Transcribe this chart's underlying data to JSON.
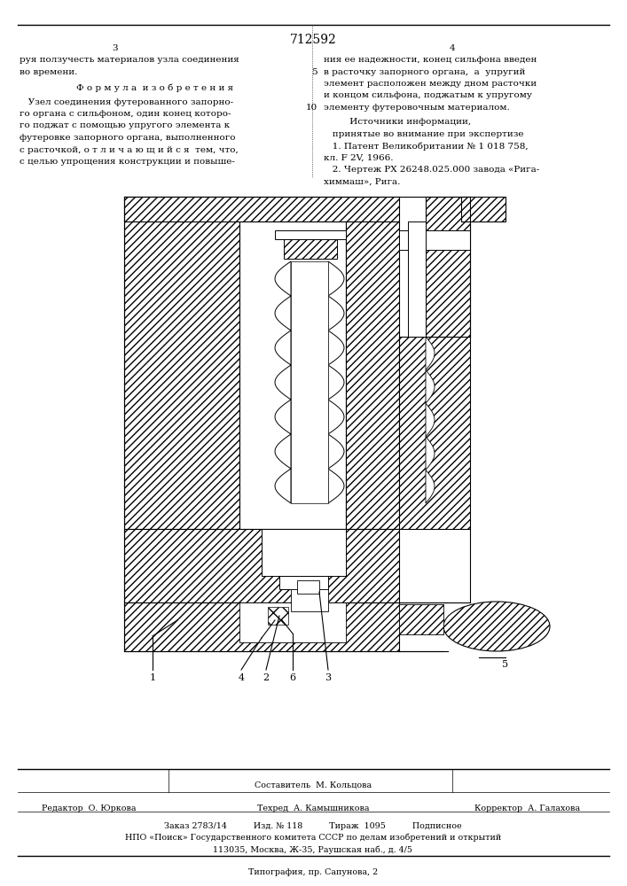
{
  "patent_number": "712592",
  "page_left": "3",
  "page_right": "4",
  "bg_color": "#ffffff",
  "text_color": "#000000",
  "left_col_lines": [
    "руя ползучесть материалов узла соединения",
    "во времени."
  ],
  "formula_header": "Ф о р м у л а  и з о б р е т е н и я",
  "formula_text": [
    "   Узел соединения футерованного запорно-",
    "го органа с сильфоном, один конец которо-",
    "го поджат с помощью упругого элемента к",
    "футеровке запорного органа, выполненного",
    "с расточкой, о т л и ч а ю щ и й с я  тем, что,",
    "с целью упрощения конструкции и повыше-"
  ],
  "right_col_lines": [
    "ния ее надежности, конец сильфона введен",
    "в расточку запорного органа,  а  упругий",
    "элемент расположен между дном расточки",
    "и концом сильфона, поджатым к упругому",
    "элементу футеровочным материалом."
  ],
  "sources_header": "         Источники информации,",
  "sources_subheader": "   принятые во внимание при экспертизе",
  "sources_lines": [
    "   1. Патент Великобритании № 1 018 758,",
    "кл. F 2V, 1966.",
    "   2. Чертеж РХ 26248.025.000 завода «Рига-",
    "химмаш», Рига."
  ],
  "compositor": "Составитель  М. Кольцова",
  "editor_label": "Редактор  О. Юркова",
  "tech_label": "Техред  А. Камышникова",
  "corrector_label": "Корректор  А. Галахова",
  "order_line": "Заказ 2783/14          Изд. № 118          Тираж  1095          Подписное",
  "npo_line": "НПО «Поиск» Государственного комитета СССР по делам изобретений и открытий",
  "address_line": "113035, Москва, Ж-35, Раушская наб., д. 4/5",
  "typography_line": "Типография, пр. Сапунова, 2"
}
